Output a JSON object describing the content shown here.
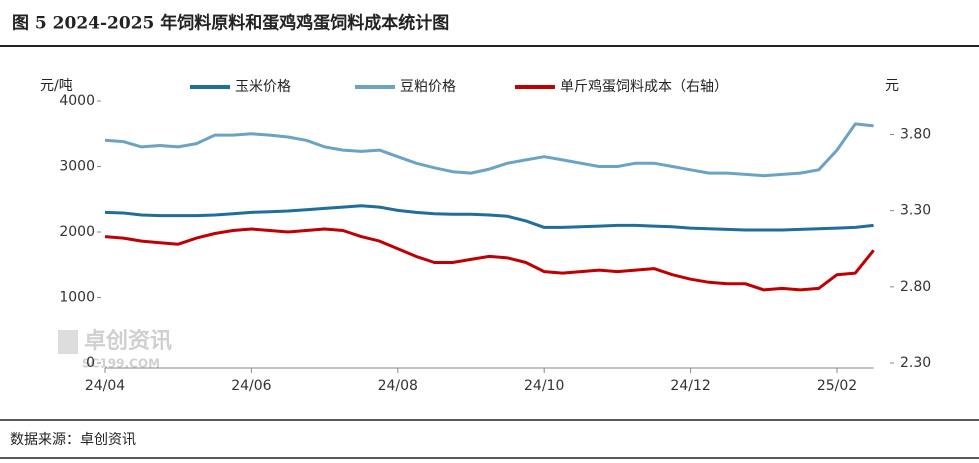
{
  "chart_data": {
    "type": "line",
    "title": "图 5 2024-2025 年饲料原料和蛋鸡鸡蛋饲料成本统计图",
    "y_label": "元/吨",
    "y2_label": "元",
    "source": "数据来源：卓创资讯",
    "watermark": [
      "卓创资讯",
      "SC199.COM"
    ],
    "categories": [
      "24/04",
      null,
      null,
      null,
      null,
      null,
      null,
      null,
      "24/06",
      null,
      null,
      null,
      null,
      null,
      null,
      null,
      "24/08",
      null,
      null,
      null,
      null,
      null,
      null,
      null,
      "24/10",
      null,
      null,
      null,
      null,
      null,
      null,
      null,
      "24/12",
      null,
      null,
      null,
      null,
      null,
      null,
      null,
      "25/02",
      null,
      null
    ],
    "ylim": [
      0,
      4000
    ],
    "yticks": [
      0,
      1000,
      2000,
      3000,
      4000
    ],
    "y2lim": [
      2.3,
      4.02
    ],
    "y2ticks": [
      {
        "value": 2.3,
        "label": "2.30"
      },
      {
        "value": 2.8,
        "label": "2.80"
      },
      {
        "value": 3.3,
        "label": "3.30"
      },
      {
        "value": 3.8,
        "label": "3.80"
      }
    ],
    "series": [
      {
        "name": "玉米价格",
        "color": "#1f6e9c",
        "values": [
          2300,
          2290,
          2260,
          2250,
          2250,
          2250,
          2260,
          2280,
          2300,
          2310,
          2320,
          2340,
          2360,
          2380,
          2400,
          2380,
          2330,
          2300,
          2280,
          2270,
          2270,
          2260,
          2240,
          2170,
          2070,
          2070,
          2080,
          2090,
          2100,
          2100,
          2090,
          2080,
          2060,
          2050,
          2040,
          2030,
          2030,
          2030,
          2040,
          2050,
          2060,
          2070,
          2100
        ]
      },
      {
        "name": "豆粕价格",
        "color": "#6aa3c4",
        "values": [
          3400,
          3380,
          3300,
          3320,
          3300,
          3350,
          3480,
          3480,
          3500,
          3480,
          3450,
          3400,
          3300,
          3250,
          3230,
          3250,
          3150,
          3050,
          2980,
          2920,
          2900,
          2960,
          3050,
          3100,
          3150,
          3100,
          3050,
          3000,
          3000,
          3050,
          3050,
          3000,
          2950,
          2900,
          2900,
          2880,
          2860,
          2880,
          2900,
          2950,
          3250,
          3650,
          3620
        ]
      },
      {
        "name": "单斤鸡蛋饲料成本（右轴）",
        "color": "#c00000",
        "axis": "y2",
        "values": [
          3.13,
          3.12,
          3.1,
          3.09,
          3.08,
          3.12,
          3.15,
          3.17,
          3.18,
          3.17,
          3.16,
          3.17,
          3.18,
          3.17,
          3.13,
          3.1,
          3.05,
          3.0,
          2.96,
          2.96,
          2.98,
          3.0,
          2.99,
          2.96,
          2.9,
          2.89,
          2.9,
          2.91,
          2.9,
          2.91,
          2.92,
          2.88,
          2.85,
          2.83,
          2.82,
          2.82,
          2.78,
          2.79,
          2.78,
          2.79,
          2.88,
          2.89,
          3.04
        ]
      }
    ]
  }
}
